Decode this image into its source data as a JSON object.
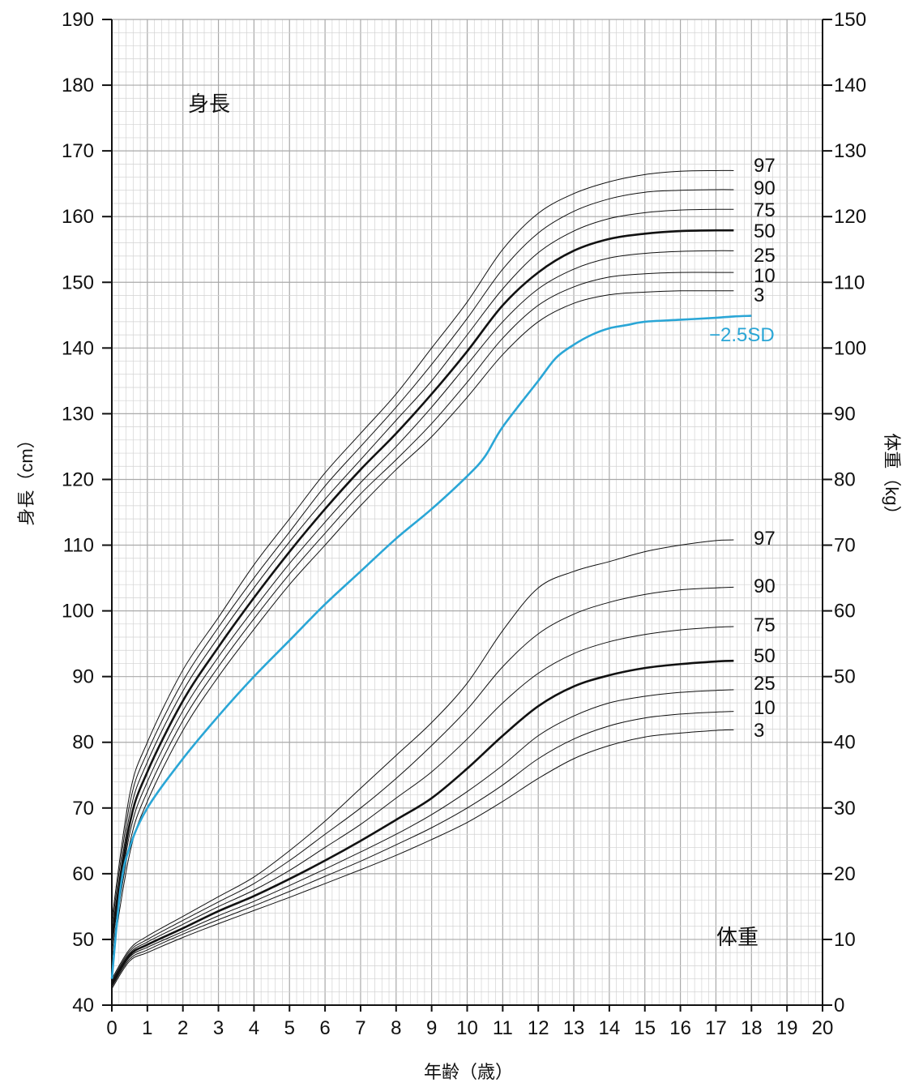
{
  "chart_data": {
    "type": "line",
    "x": [
      0,
      0.5,
      1,
      2,
      3,
      4,
      5,
      6,
      7,
      8,
      9,
      10,
      11,
      12,
      13,
      14,
      15,
      16,
      17,
      17.5
    ],
    "xlim": [
      0,
      20
    ],
    "x_ticks": [
      "0",
      "1",
      "2",
      "3",
      "4",
      "5",
      "6",
      "7",
      "8",
      "9",
      "10",
      "11",
      "12",
      "13",
      "14",
      "15",
      "16",
      "17",
      "18",
      "19",
      "20"
    ],
    "xlabel": "年齢（歳）",
    "ylabel": "身長（cm）",
    "ylim": [
      40,
      190
    ],
    "y_ticks": [
      "40",
      "50",
      "60",
      "70",
      "80",
      "90",
      "100",
      "110",
      "120",
      "130",
      "140",
      "150",
      "160",
      "170",
      "180",
      "190"
    ],
    "y2label": "体重（kg）",
    "y2lim": [
      0,
      150
    ],
    "y2_ticks": [
      "0",
      "10",
      "20",
      "30",
      "40",
      "50",
      "60",
      "70",
      "80",
      "90",
      "100",
      "110",
      "120",
      "130",
      "140",
      "150"
    ],
    "grid": true,
    "annotations": {
      "height_label": "身長",
      "weight_label": "体重"
    },
    "height_series": [
      {
        "name": "97",
        "values": [
          53,
          72,
          80,
          91,
          99,
          107,
          114,
          121,
          127,
          133,
          140,
          147,
          155,
          160.5,
          163.5,
          165.3,
          166.4,
          166.9,
          167.0,
          167.0
        ]
      },
      {
        "name": "90",
        "values": [
          52,
          70.5,
          78.5,
          89.3,
          97.5,
          105,
          112,
          119,
          125,
          131,
          137.5,
          144.5,
          152,
          157.5,
          160.8,
          162.7,
          163.7,
          164.0,
          164.1,
          164.1
        ]
      },
      {
        "name": "75",
        "values": [
          51,
          69,
          77,
          87.8,
          96,
          103.5,
          110.5,
          117,
          123,
          129,
          135,
          142,
          149,
          154.5,
          157.8,
          159.7,
          160.6,
          161.0,
          161.1,
          161.1
        ]
      },
      {
        "name": "50",
        "values": [
          50,
          67.5,
          75.5,
          86.3,
          94.5,
          102,
          109,
          115.5,
          121.5,
          127,
          133,
          139.5,
          146.5,
          151.5,
          154.8,
          156.6,
          157.4,
          157.8,
          157.9,
          157.9
        ]
      },
      {
        "name": "25",
        "values": [
          49,
          66,
          74,
          84.8,
          93,
          100.3,
          107.2,
          113.5,
          119.5,
          125,
          131,
          137.5,
          144,
          149,
          152,
          153.7,
          154.4,
          154.7,
          154.8,
          154.8
        ]
      },
      {
        "name": "10",
        "values": [
          48,
          64.5,
          72.5,
          83.3,
          91.5,
          98.8,
          105.6,
          111.8,
          117.8,
          123,
          128.5,
          134.8,
          141.5,
          146.5,
          149.3,
          150.8,
          151.3,
          151.5,
          151.5,
          151.5
        ]
      },
      {
        "name": "3",
        "values": [
          47,
          63,
          71,
          81.8,
          90,
          97.2,
          104,
          110,
          116,
          121.5,
          126.5,
          132.5,
          139,
          144,
          146.8,
          148.1,
          148.5,
          148.7,
          148.7,
          148.7
        ]
      }
    ],
    "height_sd_series": {
      "name": "−2.5SD",
      "x": [
        0,
        0.25,
        0.5,
        1,
        2,
        3,
        4,
        5,
        6,
        7,
        8,
        9,
        10,
        10.5,
        11,
        12,
        12.5,
        13,
        13.5,
        14,
        14.5,
        15,
        16,
        17,
        17.5,
        18
      ],
      "values": [
        44,
        58,
        64,
        70,
        77.5,
        84,
        90,
        95.5,
        101,
        106,
        111,
        115.5,
        120.5,
        123.5,
        128,
        135,
        138.5,
        140.5,
        142,
        143,
        143.5,
        144,
        144.3,
        144.6,
        144.8,
        144.9
      ],
      "color": "#2aa6d6"
    },
    "weight_series": [
      {
        "name": "97",
        "values": [
          4.0,
          8.5,
          10.5,
          13.5,
          16.5,
          19.5,
          23.5,
          28,
          33,
          38,
          43,
          49,
          57,
          63.5,
          66,
          67.5,
          69,
          70,
          70.7,
          70.8
        ]
      },
      {
        "name": "90",
        "values": [
          3.7,
          8.2,
          10.0,
          12.9,
          15.7,
          18.5,
          22,
          26,
          30,
          34.5,
          39.5,
          45,
          51.5,
          56.5,
          59.5,
          61.3,
          62.5,
          63.2,
          63.5,
          63.6
        ]
      },
      {
        "name": "75",
        "values": [
          3.5,
          7.9,
          9.6,
          12.3,
          15.0,
          17.5,
          20.5,
          24,
          27.5,
          31.5,
          35.5,
          40.5,
          46,
          50.5,
          53.5,
          55.3,
          56.4,
          57.1,
          57.5,
          57.6
        ]
      },
      {
        "name": "50",
        "values": [
          3.2,
          7.6,
          9.2,
          11.7,
          14.3,
          16.6,
          19.2,
          22,
          25,
          28.2,
          31.5,
          36,
          41,
          45.5,
          48.5,
          50.2,
          51.3,
          51.9,
          52.3,
          52.4
        ]
      },
      {
        "name": "25",
        "values": [
          3.0,
          7.3,
          8.8,
          11.2,
          13.6,
          15.8,
          18.2,
          20.7,
          23.3,
          26,
          29,
          32.5,
          36.5,
          41,
          44,
          46,
          47,
          47.6,
          47.9,
          48.0
        ]
      },
      {
        "name": "10",
        "values": [
          2.8,
          7.0,
          8.4,
          10.8,
          13.0,
          15.1,
          17.3,
          19.6,
          21.9,
          24.4,
          27,
          30,
          33.5,
          37.5,
          40.5,
          42.5,
          43.7,
          44.3,
          44.6,
          44.7
        ]
      },
      {
        "name": "3",
        "values": [
          2.5,
          6.7,
          8.0,
          10.3,
          12.4,
          14.4,
          16.4,
          18.5,
          20.6,
          22.8,
          25.2,
          27.8,
          31,
          34.5,
          37.5,
          39.5,
          40.8,
          41.4,
          41.8,
          41.9
        ]
      }
    ]
  }
}
